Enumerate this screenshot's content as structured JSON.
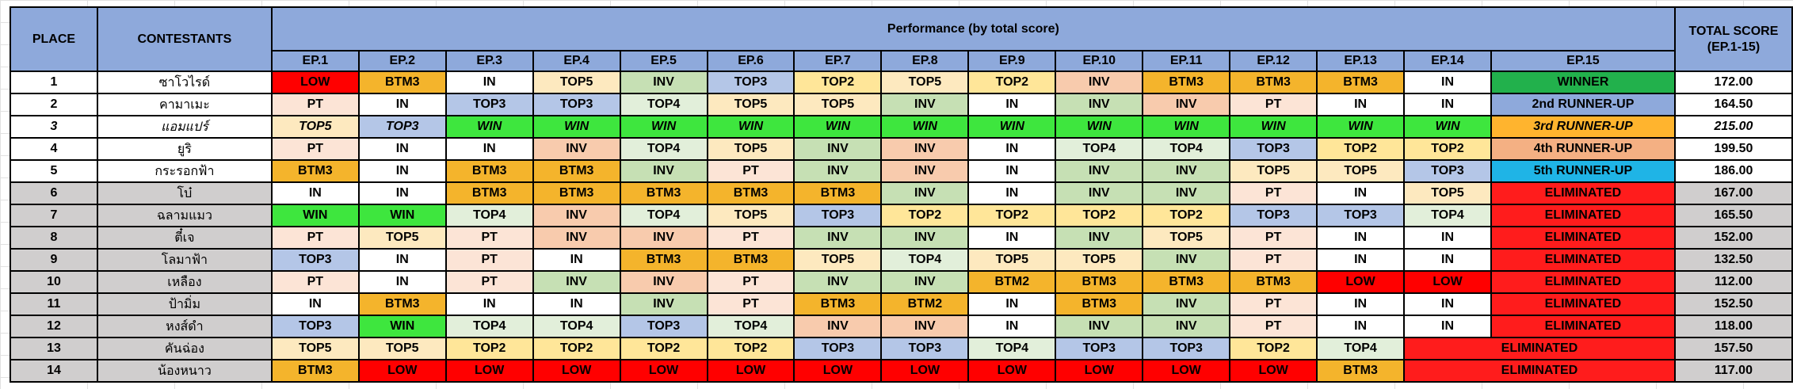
{
  "headers": {
    "place": "PLACE",
    "contestants": "CONTESTANTS",
    "performance": "Performance (by total score)",
    "total_line1": "TOTAL SCORE",
    "total_line2": "(EP.1-15)",
    "episodes": [
      "EP.1",
      "EP.2",
      "EP.3",
      "EP.4",
      "EP.5",
      "EP.6",
      "EP.7",
      "EP.8",
      "EP.9",
      "EP.10",
      "EP.11",
      "EP.12",
      "EP.13",
      "EP.14",
      "EP.15"
    ]
  },
  "colors": {
    "header": "#8ea9db",
    "IN": "#ffffff",
    "LOW": "#ff0000",
    "BTM3": "#f4b42c",
    "TOP5": "#fde9bf",
    "TOP4": "#e2efda",
    "TOP3": "#b4c6e7",
    "TOP2": "#ffe699",
    "INV": "#c6e0b4",
    "PT": "#fce4d6",
    "WIN": "#3ee63e",
    "WINNER": "#22b14c",
    "ELIMINATED": "#ff1c1c",
    "eliminated_row": "#d0cece"
  },
  "rows": [
    {
      "place": "1",
      "name": "ซาโวไรด์",
      "results": [
        [
          "LOW",
          "LOW"
        ],
        [
          "BTM3",
          "BTM3"
        ],
        [
          "IN",
          "IN"
        ],
        [
          "TOP5",
          "TOP5"
        ],
        [
          "INV",
          "INV"
        ],
        [
          "TOP3",
          "TOP3"
        ],
        [
          "TOP2",
          "TOP2"
        ],
        [
          "TOP5",
          "TOP5"
        ],
        [
          "TOP2",
          "TOP2"
        ],
        [
          "INV",
          "INVa"
        ],
        [
          "BTM3",
          "BTM3"
        ],
        [
          "BTM3",
          "BTM3"
        ],
        [
          "BTM3",
          "BTM3"
        ],
        [
          "IN",
          "IN"
        ],
        [
          "WINNER",
          "WINNER"
        ]
      ],
      "total": "172.00",
      "elim": false,
      "third": false
    },
    {
      "place": "2",
      "name": "คามาเมะ",
      "results": [
        [
          "PT",
          "PT"
        ],
        [
          "IN",
          "IN"
        ],
        [
          "TOP3",
          "TOP3"
        ],
        [
          "TOP3",
          "TOP3"
        ],
        [
          "TOP4",
          "TOP4"
        ],
        [
          "TOP5",
          "TOP5"
        ],
        [
          "TOP5",
          "TOP5"
        ],
        [
          "INV",
          "INV"
        ],
        [
          "IN",
          "IN"
        ],
        [
          "INV",
          "INV"
        ],
        [
          "INV",
          "INVa"
        ],
        [
          "PT",
          "PT"
        ],
        [
          "IN",
          "IN"
        ],
        [
          "IN",
          "IN"
        ],
        [
          "2nd RUNNER-UP",
          "R2"
        ]
      ],
      "total": "164.50",
      "elim": false,
      "third": false
    },
    {
      "place": "3",
      "name": "แอมแปร์",
      "results": [
        [
          "TOP5",
          "TOP5"
        ],
        [
          "TOP3",
          "TOP3"
        ],
        [
          "WIN",
          "WIN"
        ],
        [
          "WIN",
          "WIN"
        ],
        [
          "WIN",
          "WIN"
        ],
        [
          "WIN",
          "WIN"
        ],
        [
          "WIN",
          "WIN"
        ],
        [
          "WIN",
          "WIN"
        ],
        [
          "WIN",
          "WIN"
        ],
        [
          "WIN",
          "WIN"
        ],
        [
          "WIN",
          "WIN"
        ],
        [
          "WIN",
          "WIN"
        ],
        [
          "WIN",
          "WIN"
        ],
        [
          "WIN",
          "WIN"
        ],
        [
          "3rd RUNNER-UP",
          "R3"
        ]
      ],
      "total": "215.00",
      "elim": false,
      "third": true
    },
    {
      "place": "4",
      "name": "ยูริ",
      "results": [
        [
          "PT",
          "PT"
        ],
        [
          "IN",
          "IN"
        ],
        [
          "IN",
          "IN"
        ],
        [
          "INV",
          "INVa"
        ],
        [
          "TOP4",
          "TOP4"
        ],
        [
          "TOP5",
          "TOP5"
        ],
        [
          "INV",
          "INV"
        ],
        [
          "INV",
          "INVa"
        ],
        [
          "IN",
          "IN"
        ],
        [
          "TOP4",
          "TOP4"
        ],
        [
          "TOP4",
          "TOP4"
        ],
        [
          "TOP3",
          "TOP3"
        ],
        [
          "TOP2",
          "TOP2"
        ],
        [
          "TOP2",
          "TOP2"
        ],
        [
          "4th RUNNER-UP",
          "R4"
        ]
      ],
      "total": "199.50",
      "elim": false,
      "third": false
    },
    {
      "place": "5",
      "name": "กระรอกฟ้า",
      "results": [
        [
          "BTM3",
          "BTM3"
        ],
        [
          "IN",
          "IN"
        ],
        [
          "BTM3",
          "BTM3"
        ],
        [
          "BTM3",
          "BTM3"
        ],
        [
          "INV",
          "INV"
        ],
        [
          "PT",
          "PT"
        ],
        [
          "INV",
          "INV"
        ],
        [
          "INV",
          "INVa"
        ],
        [
          "IN",
          "IN"
        ],
        [
          "INV",
          "INV"
        ],
        [
          "INV",
          "INV"
        ],
        [
          "TOP5",
          "TOP5"
        ],
        [
          "TOP5",
          "TOP5"
        ],
        [
          "TOP3",
          "TOP3"
        ],
        [
          "5th RUNNER-UP",
          "R5"
        ]
      ],
      "total": "186.00",
      "elim": false,
      "third": false
    },
    {
      "place": "6",
      "name": "โบ๋",
      "results": [
        [
          "IN",
          "IN"
        ],
        [
          "IN",
          "IN"
        ],
        [
          "BTM3",
          "BTM3"
        ],
        [
          "BTM3",
          "BTM3"
        ],
        [
          "BTM3",
          "BTM3"
        ],
        [
          "BTM3",
          "BTM3"
        ],
        [
          "BTM3",
          "BTM3"
        ],
        [
          "INV",
          "INV"
        ],
        [
          "IN",
          "IN"
        ],
        [
          "INV",
          "INV"
        ],
        [
          "INV",
          "INV"
        ],
        [
          "PT",
          "PT"
        ],
        [
          "IN",
          "IN"
        ],
        [
          "TOP5",
          "TOP5"
        ],
        [
          "ELIMINATED",
          "ELIM"
        ]
      ],
      "total": "167.00",
      "elim": true,
      "third": false
    },
    {
      "place": "7",
      "name": "ฉลามแมว",
      "results": [
        [
          "WIN",
          "WIN"
        ],
        [
          "WIN",
          "WIN"
        ],
        [
          "TOP4",
          "TOP4"
        ],
        [
          "INV",
          "INVa"
        ],
        [
          "TOP4",
          "TOP4"
        ],
        [
          "TOP5",
          "TOP5"
        ],
        [
          "TOP3",
          "TOP3"
        ],
        [
          "TOP2",
          "TOP2"
        ],
        [
          "TOP2",
          "TOP2"
        ],
        [
          "TOP2",
          "TOP2"
        ],
        [
          "TOP2",
          "TOP2"
        ],
        [
          "TOP3",
          "TOP3"
        ],
        [
          "TOP3",
          "TOP3"
        ],
        [
          "TOP4",
          "TOP4"
        ],
        [
          "ELIMINATED",
          "ELIM"
        ]
      ],
      "total": "165.50",
      "elim": true,
      "third": false
    },
    {
      "place": "8",
      "name": "ตี๋เจ",
      "results": [
        [
          "PT",
          "PT"
        ],
        [
          "TOP5",
          "TOP5"
        ],
        [
          "PT",
          "PT"
        ],
        [
          "INV",
          "INVa"
        ],
        [
          "INV",
          "INVa"
        ],
        [
          "PT",
          "PT"
        ],
        [
          "INV",
          "INV"
        ],
        [
          "INV",
          "INV"
        ],
        [
          "IN",
          "IN"
        ],
        [
          "INV",
          "INV"
        ],
        [
          "TOP5",
          "TOP5"
        ],
        [
          "PT",
          "PT"
        ],
        [
          "IN",
          "IN"
        ],
        [
          "IN",
          "IN"
        ],
        [
          "ELIMINATED",
          "ELIM"
        ]
      ],
      "total": "152.00",
      "elim": true,
      "third": false
    },
    {
      "place": "9",
      "name": "โลมาฟ้า",
      "results": [
        [
          "TOP3",
          "TOP3"
        ],
        [
          "IN",
          "IN"
        ],
        [
          "PT",
          "PT"
        ],
        [
          "IN",
          "IN"
        ],
        [
          "BTM3",
          "BTM3"
        ],
        [
          "BTM3",
          "BTM3"
        ],
        [
          "TOP5",
          "TOP5"
        ],
        [
          "TOP4",
          "TOP4"
        ],
        [
          "TOP5",
          "TOP5"
        ],
        [
          "TOP5",
          "TOP5"
        ],
        [
          "INV",
          "INV"
        ],
        [
          "PT",
          "PT"
        ],
        [
          "IN",
          "IN"
        ],
        [
          "IN",
          "IN"
        ],
        [
          "ELIMINATED",
          "ELIM"
        ]
      ],
      "total": "132.50",
      "elim": true,
      "third": false
    },
    {
      "place": "10",
      "name": "เหลือง",
      "results": [
        [
          "PT",
          "PT"
        ],
        [
          "IN",
          "IN"
        ],
        [
          "PT",
          "PT"
        ],
        [
          "INV",
          "INV"
        ],
        [
          "INV",
          "INVa"
        ],
        [
          "PT",
          "PT"
        ],
        [
          "INV",
          "INV"
        ],
        [
          "INV",
          "INV"
        ],
        [
          "BTM2",
          "BTM2"
        ],
        [
          "BTM3",
          "BTM3"
        ],
        [
          "BTM3",
          "BTM3"
        ],
        [
          "BTM3",
          "BTM3"
        ],
        [
          "LOW",
          "LOW"
        ],
        [
          "LOW",
          "LOW"
        ],
        [
          "ELIMINATED",
          "ELIM"
        ]
      ],
      "total": "112.00",
      "elim": true,
      "third": false
    },
    {
      "place": "11",
      "name": "ป้ามิ่ม",
      "results": [
        [
          "IN",
          "IN"
        ],
        [
          "BTM3",
          "BTM3"
        ],
        [
          "IN",
          "IN"
        ],
        [
          "IN",
          "IN"
        ],
        [
          "INV",
          "INV"
        ],
        [
          "PT",
          "PT"
        ],
        [
          "BTM3",
          "BTM3"
        ],
        [
          "BTM2",
          "BTM2"
        ],
        [
          "IN",
          "IN"
        ],
        [
          "BTM3",
          "BTM3"
        ],
        [
          "INV",
          "INV"
        ],
        [
          "PT",
          "PT"
        ],
        [
          "IN",
          "IN"
        ],
        [
          "IN",
          "IN"
        ],
        [
          "ELIMINATED",
          "ELIM"
        ]
      ],
      "total": "152.50",
      "elim": true,
      "third": false
    },
    {
      "place": "12",
      "name": "หงส์ดำ",
      "results": [
        [
          "TOP3",
          "TOP3"
        ],
        [
          "WIN",
          "WIN"
        ],
        [
          "TOP4",
          "TOP4"
        ],
        [
          "TOP4",
          "TOP4"
        ],
        [
          "TOP3",
          "TOP3"
        ],
        [
          "TOP4",
          "TOP4"
        ],
        [
          "INV",
          "INVa"
        ],
        [
          "INV",
          "INVa"
        ],
        [
          "IN",
          "IN"
        ],
        [
          "INV",
          "INV"
        ],
        [
          "INV",
          "INV"
        ],
        [
          "PT",
          "PT"
        ],
        [
          "IN",
          "IN"
        ],
        [
          "IN",
          "IN"
        ],
        [
          "ELIMINATED",
          "ELIM"
        ]
      ],
      "total": "118.00",
      "elim": true,
      "third": false
    },
    {
      "place": "13",
      "name": "คันฉ่อง",
      "results": [
        [
          "TOP5",
          "TOP5"
        ],
        [
          "TOP5",
          "TOP5"
        ],
        [
          "TOP2",
          "TOP2"
        ],
        [
          "TOP2",
          "TOP2"
        ],
        [
          "TOP2",
          "TOP2"
        ],
        [
          "TOP2",
          "TOP2"
        ],
        [
          "TOP3",
          "TOP3"
        ],
        [
          "TOP3",
          "TOP3"
        ],
        [
          "TOP4",
          "TOP4"
        ],
        [
          "TOP3",
          "TOP3"
        ],
        [
          "TOP3",
          "TOP3"
        ],
        [
          "TOP2",
          "TOP2"
        ],
        [
          "TOP4",
          "TOP4"
        ]
      ],
      "span_label": "ELIMINATED",
      "total": "157.50",
      "elim": true,
      "third": false
    },
    {
      "place": "14",
      "name": "น้องหนาว",
      "results": [
        [
          "BTM3",
          "BTM3"
        ],
        [
          "LOW",
          "LOW"
        ],
        [
          "LOW",
          "LOW"
        ],
        [
          "LOW",
          "LOW"
        ],
        [
          "LOW",
          "LOW"
        ],
        [
          "LOW",
          "LOW"
        ],
        [
          "LOW",
          "LOW"
        ],
        [
          "LOW",
          "LOW"
        ],
        [
          "LOW",
          "LOW"
        ],
        [
          "LOW",
          "LOW"
        ],
        [
          "LOW",
          "LOW"
        ],
        [
          "LOW",
          "LOW"
        ],
        [
          "BTM3",
          "BTM3"
        ]
      ],
      "span_label": "ELIMINATED",
      "total": "117.00",
      "elim": true,
      "third": false
    }
  ]
}
